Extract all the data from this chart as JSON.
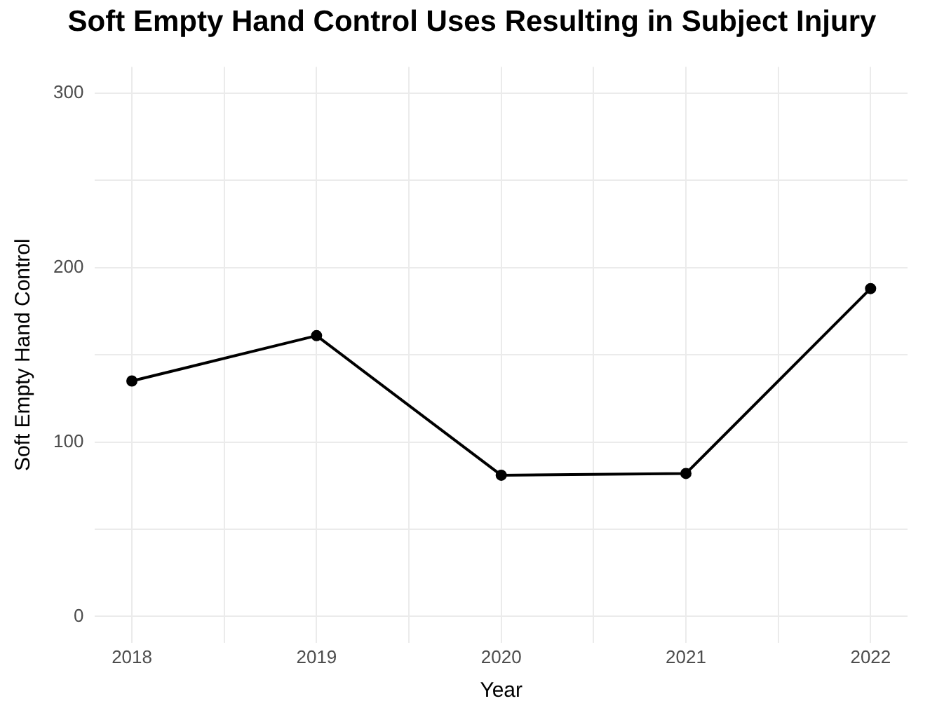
{
  "chart_data": {
    "type": "line",
    "title": "Soft Empty Hand Control Uses Resulting in Subject Injury",
    "xlabel": "Year",
    "ylabel": "Soft Empty Hand Control",
    "x": [
      2018,
      2019,
      2020,
      2021,
      2022
    ],
    "series": [
      {
        "color": "#000000",
        "values": [
          135,
          161,
          81,
          82,
          188
        ]
      }
    ],
    "xlim": [
      2017.8,
      2022.2
    ],
    "xticks": [
      2018,
      {
        "value": 2018.5,
        "label": null
      },
      2019,
      {
        "value": 2019.5,
        "label": null
      },
      2020,
      {
        "value": 2020.5,
        "label": null
      },
      2021,
      {
        "value": 2021.5,
        "label": null
      },
      2022
    ],
    "ylim": [
      -15,
      315
    ],
    "yticks": [
      0,
      {
        "value": 50,
        "label": null
      },
      100,
      {
        "value": 150,
        "label": null
      },
      200,
      {
        "value": 250,
        "label": null
      },
      300
    ],
    "grid": true,
    "legend": false,
    "marker": "circle",
    "line_style": "solid"
  }
}
